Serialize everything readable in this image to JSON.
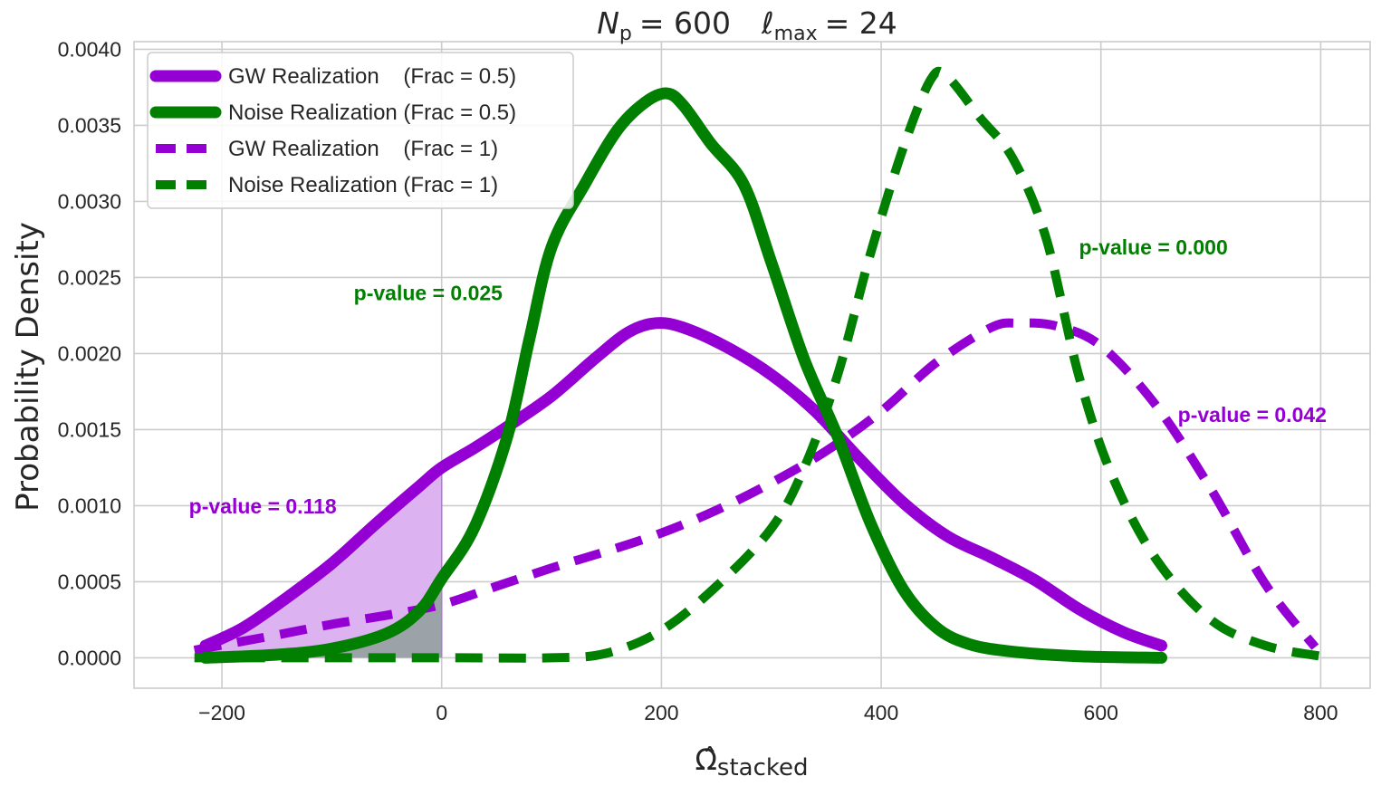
{
  "chart_data": {
    "type": "line",
    "title_parts": {
      "np_symbol": "N",
      "np_sub": "p",
      "np_value": "= 600",
      "l_symbol": "ℓ",
      "l_sub": "max",
      "l_value": "= 24"
    },
    "xlabel_parts": {
      "symbol": "Ω̂",
      "sub": "stacked"
    },
    "ylabel": "Probability Density",
    "xlim": [
      -280,
      845
    ],
    "ylim": [
      -0.0002,
      0.00405
    ],
    "xticks": [
      -200,
      0,
      200,
      400,
      600,
      800
    ],
    "xtick_labels": [
      "−200",
      "0",
      "200",
      "400",
      "600",
      "800"
    ],
    "yticks": [
      0.0,
      0.0005,
      0.001,
      0.0015,
      0.002,
      0.0025,
      0.003,
      0.0035,
      0.004
    ],
    "ytick_labels": [
      "0.0000",
      "0.0005",
      "0.0010",
      "0.0015",
      "0.0020",
      "0.0025",
      "0.0030",
      "0.0035",
      "0.0040"
    ],
    "grid": true,
    "legend_position": "upper-left",
    "colors": {
      "gw": "#9400d3",
      "noise": "#007f00",
      "gw_fill": "#dcb2f0",
      "noise_fill": "#9ca3a8"
    },
    "series": [
      {
        "name": "GW Realization    (Frac = 0.5)",
        "style": "solid",
        "color": "#9400d3",
        "x": [
          -215,
          -180,
          -140,
          -100,
          -60,
          -20,
          0,
          30,
          60,
          100,
          140,
          170,
          195,
          220,
          260,
          300,
          340,
          380,
          420,
          460,
          500,
          540,
          580,
          620,
          655
        ],
        "y": [
          8e-05,
          0.0002,
          0.0004,
          0.00062,
          0.00088,
          0.00113,
          0.00125,
          0.00138,
          0.00152,
          0.00172,
          0.00197,
          0.00214,
          0.0022,
          0.00217,
          0.00204,
          0.00186,
          0.00162,
          0.00131,
          0.00102,
          0.0008,
          0.00066,
          0.00051,
          0.00032,
          0.00017,
          8e-05
        ]
      },
      {
        "name": "Noise Realization (Frac = 0.5)",
        "style": "solid",
        "color": "#007f00",
        "x": [
          -215,
          -150,
          -100,
          -50,
          -20,
          0,
          30,
          60,
          80,
          100,
          130,
          160,
          185,
          205,
          220,
          245,
          275,
          300,
          330,
          360,
          390,
          420,
          450,
          480,
          520,
          580,
          655
        ],
        "y": [
          0.0,
          2e-05,
          6e-05,
          0.00016,
          0.00031,
          0.00052,
          0.00086,
          0.00146,
          0.0021,
          0.0027,
          0.00311,
          0.00347,
          0.00365,
          0.00371,
          0.00363,
          0.00338,
          0.00311,
          0.0026,
          0.00196,
          0.00146,
          0.00089,
          0.00045,
          0.0002,
          9e-05,
          4e-05,
          1e-05,
          0.0
        ]
      },
      {
        "name": "GW Realization    (Frac = 1)",
        "style": "dashed",
        "color": "#9400d3",
        "x": [
          -225,
          -150,
          -100,
          -50,
          0,
          50,
          100,
          150,
          200,
          250,
          300,
          350,
          400,
          450,
          500,
          525,
          560,
          600,
          650,
          700,
          750,
          795
        ],
        "y": [
          5e-05,
          0.00015,
          0.00022,
          0.00028,
          0.00035,
          0.00047,
          0.00059,
          0.0007,
          0.00082,
          0.00097,
          0.00115,
          0.00136,
          0.00162,
          0.00194,
          0.00217,
          0.0022,
          0.00218,
          0.00205,
          0.00166,
          0.00111,
          0.00048,
          7e-05
        ]
      },
      {
        "name": "Noise Realization (Frac = 1)",
        "style": "dashed",
        "color": "#007f00",
        "x": [
          -225,
          0,
          100,
          150,
          200,
          250,
          300,
          330,
          360,
          390,
          420,
          445,
          460,
          490,
          520,
          550,
          580,
          610,
          650,
          700,
          750,
          800
        ],
        "y": [
          0.0,
          0.0,
          0.0,
          3e-05,
          0.00018,
          0.00047,
          0.00085,
          0.00125,
          0.00185,
          0.00265,
          0.00335,
          0.0038,
          0.00382,
          0.00355,
          0.00328,
          0.00276,
          0.00185,
          0.0012,
          0.00065,
          0.00025,
          8e-05,
          1e-05
        ]
      }
    ],
    "annotations": [
      {
        "text": "p-value =  0.025",
        "series": "noise",
        "x": -80,
        "y": 0.00235
      },
      {
        "text": "p-value =  0.000",
        "series": "noise",
        "x": 580,
        "y": 0.00265
      },
      {
        "text": "p-value =  0.118",
        "series": "gw",
        "x": -230,
        "y": 0.00095
      },
      {
        "text": "p-value =  0.042",
        "series": "gw",
        "x": 670,
        "y": 0.00155
      }
    ],
    "shaded_regions": [
      {
        "series": "GW Realization    (Frac = 0.5)",
        "x_max": 0,
        "fill": "gw_fill"
      },
      {
        "series": "Noise Realization (Frac = 0.5)",
        "x_max": 0,
        "fill": "noise_fill"
      }
    ]
  }
}
